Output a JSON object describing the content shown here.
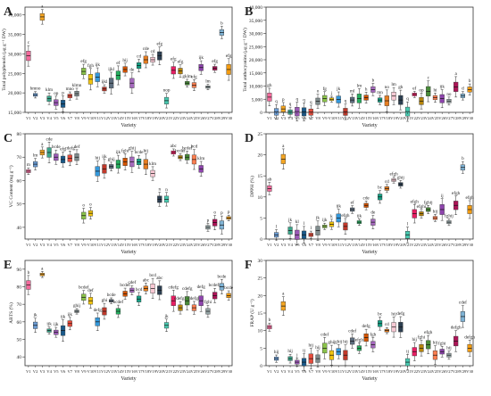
{
  "chart_data": [
    {
      "type": "box",
      "panel_label": "A",
      "xlabel": "",
      "ylabel": "Total polyphenols (μg g⁻¹ DW)",
      "ylim": [
        15000,
        42000
      ],
      "yticks": [
        15000,
        20000,
        25000,
        30000,
        35000,
        40000
      ],
      "ytick_labels": [
        "15,000",
        "20,000",
        "25,000",
        "30,000",
        "35,000",
        "40,000"
      ],
      "categories": [
        "V1",
        "V2",
        "V3",
        "V4",
        "V5",
        "V6",
        "V7",
        "V8",
        "V9",
        "V10",
        "V11",
        "V12",
        "V13",
        "V14",
        "V15",
        "V16",
        "V17",
        "V18",
        "V19",
        "V20",
        "V21",
        "V22",
        "V23",
        "V24",
        "V25",
        "V26",
        "V27",
        "V28",
        "V29",
        "V30"
      ],
      "medians": [
        29500,
        19500,
        39500,
        18500,
        17500,
        17200,
        19200,
        19800,
        25500,
        23500,
        24000,
        21000,
        22500,
        24500,
        26000,
        22500,
        27000,
        28500,
        28500,
        29500,
        18000,
        25800,
        25600,
        22500,
        22000,
        26500,
        21500,
        26300,
        35500,
        26000
      ],
      "letters": [
        "c",
        "hmno",
        "a",
        "klm",
        "op",
        "p",
        "mno",
        "klmn",
        "efg",
        "fgh",
        "ijk",
        "ijkl",
        "ijkl",
        "ef",
        "hij",
        "de",
        "cd",
        "cde",
        "cd",
        "efg",
        "nop",
        "efg",
        "efg",
        "gklm",
        "efg",
        "ijk",
        "lm",
        "efg",
        "b",
        "efg"
      ]
    },
    {
      "type": "box",
      "panel_label": "B",
      "xlabel": "",
      "ylabel": "Total anthocyanins (μg g⁻¹ DW)",
      "ylim": [
        0,
        40000
      ],
      "yticks": [
        0,
        5000,
        10000,
        15000,
        20000,
        25000,
        30000,
        35000,
        40000
      ],
      "ytick_labels": [
        "0",
        "5,000",
        "10,000",
        "15,000",
        "20,000",
        "25,000",
        "30,000",
        "35,000",
        "40,000"
      ],
      "categories": [
        "V1",
        "V2",
        "V3",
        "V4",
        "V5",
        "V6",
        "V7",
        "V8",
        "V9",
        "V10",
        "V11",
        "V12",
        "V13",
        "V14",
        "V15",
        "V16",
        "V17",
        "V18",
        "V19",
        "V20",
        "V21",
        "V22",
        "V23",
        "V24",
        "V25",
        "V26",
        "V27",
        "V28",
        "V29",
        "V30"
      ],
      "medians": [
        5800,
        200,
        1300,
        100,
        300,
        200,
        100,
        4200,
        5200,
        5000,
        4900,
        200,
        4700,
        5300,
        5600,
        8700,
        4700,
        4400,
        6200,
        4700,
        300,
        6800,
        4300,
        8000,
        5600,
        5200,
        4300,
        9700,
        6300,
        8700
      ],
      "letters": [
        "gh",
        "q",
        "p",
        "q",
        "q",
        "q",
        "q",
        "o",
        "fg",
        "j",
        "jk",
        "q",
        "ml",
        "lm",
        "h",
        "b",
        "mn",
        "no",
        "lm",
        "gh",
        "q",
        "ef",
        "op",
        "c",
        "hi",
        "ijk",
        "no",
        "a",
        "d",
        "b"
      ]
    },
    {
      "type": "box",
      "panel_label": "C",
      "xlabel": "",
      "ylabel": "VC Content (mg g⁻¹)",
      "ylim": [
        35,
        80
      ],
      "yticks": [
        40,
        50,
        60,
        70,
        80
      ],
      "ytick_labels": [
        "40",
        "50",
        "60",
        "70",
        "80"
      ],
      "categories": [
        "V1",
        "V2",
        "V3",
        "V4",
        "V5",
        "V6",
        "V7",
        "V8",
        "V9",
        "V10",
        "V11",
        "V12",
        "V13",
        "V14",
        "V15",
        "V16",
        "V17",
        "V18",
        "V19",
        "V20",
        "V21",
        "V22",
        "V23",
        "V24",
        "V25",
        "V26",
        "V27",
        "V28",
        "V29",
        "V30"
      ],
      "medians": [
        64,
        67,
        72,
        72,
        70,
        69,
        69.5,
        70,
        45,
        46,
        64,
        65,
        66,
        67,
        68,
        68,
        68,
        67,
        63,
        52,
        52,
        72,
        70,
        70,
        69,
        65,
        40,
        42,
        41,
        44
      ],
      "letters": [
        "m",
        "lm",
        "a",
        "cde",
        "bcde",
        "efg",
        "cdefg",
        "def",
        "o",
        "o",
        "hij",
        "ijk",
        "ghij",
        "ijk",
        "fghi",
        "ghij",
        "bcde",
        "hij",
        "klm",
        "n",
        "n",
        "abc",
        "bcdef",
        "bcdef",
        "bcd",
        "klm",
        "p",
        "o",
        "p",
        "p"
      ]
    },
    {
      "type": "box",
      "panel_label": "D",
      "xlabel": "",
      "ylabel": "DPPH (%)",
      "ylim": [
        0,
        25
      ],
      "yticks": [
        0,
        5,
        10,
        15,
        20,
        25
      ],
      "ytick_labels": [
        "0",
        "5",
        "10",
        "15",
        "20",
        "25"
      ],
      "categories": [
        "V1",
        "V2",
        "V3",
        "V4",
        "V5",
        "V6",
        "V7",
        "V8",
        "V9",
        "V10",
        "V11",
        "V12",
        "V13",
        "V14",
        "V15",
        "V16",
        "V17",
        "V18",
        "V19",
        "V20",
        "V21",
        "V22",
        "V23",
        "V24",
        "V25",
        "V26",
        "V27",
        "V28",
        "V29",
        "V30"
      ],
      "medians": [
        12,
        1,
        19,
        2,
        1,
        1,
        1,
        2,
        3,
        3.5,
        5,
        3,
        7,
        4,
        8,
        4,
        10,
        12,
        14,
        13,
        1,
        6,
        6,
        7,
        5,
        7,
        4,
        8,
        17,
        7
      ],
      "letters": [
        "ab",
        "l",
        "a",
        "jk",
        "kl",
        "l",
        "l",
        "jk",
        "ijk",
        "k",
        "ijk",
        "efgh",
        "ef",
        "ijk",
        "cde",
        "de",
        "bc",
        "cd",
        "efgh",
        "ghij",
        "l",
        "efgh",
        "efghi",
        "fghij",
        "hij",
        "ij",
        "fghij",
        "efgh",
        "b",
        "efgh"
      ]
    },
    {
      "type": "box",
      "panel_label": "E",
      "xlabel": "",
      "ylabel": "ABTS (%)",
      "ylim": [
        35,
        95
      ],
      "yticks": [
        40,
        50,
        60,
        70,
        80,
        90
      ],
      "ytick_labels": [
        "40",
        "50",
        "60",
        "70",
        "80",
        "90"
      ],
      "categories": [
        "V1",
        "V2",
        "V3",
        "V4",
        "V5",
        "V6",
        "V7",
        "V8",
        "V9",
        "V10",
        "V11",
        "V12",
        "V13",
        "V14",
        "V15",
        "V16",
        "V17",
        "V18",
        "V19",
        "V20",
        "V21",
        "V22",
        "V23",
        "V24",
        "V25",
        "V26",
        "V27",
        "V28",
        "V29",
        "V30"
      ],
      "medians": [
        81,
        58,
        87,
        55,
        54,
        55,
        59,
        66,
        74,
        72,
        60,
        66,
        72,
        66,
        76,
        78,
        73,
        79,
        79,
        78,
        58,
        72,
        68,
        72,
        68,
        72,
        66,
        75,
        80,
        75
      ],
      "letters": [
        "b",
        "jk",
        "a",
        "ijk",
        "ijk",
        "ijk",
        "ijk",
        "ghij",
        "bcdef",
        "def",
        "defg",
        "ghi",
        "bcde",
        "bcdef",
        "bcdef",
        "cdef",
        "bcd",
        "abc",
        "bcd",
        "abc",
        "jk",
        "cdefg",
        "cdefgh",
        "cdefg",
        "cdefgh",
        "defg",
        "fghi",
        "bcdefg",
        "bcde",
        "bcde"
      ]
    },
    {
      "type": "box",
      "panel_label": "F",
      "xlabel": "",
      "ylabel": "FRAP (U g⁻¹)",
      "ylim": [
        0,
        30
      ],
      "yticks": [
        0,
        5,
        10,
        15,
        20,
        25,
        30
      ],
      "ytick_labels": [
        "0",
        "5",
        "10",
        "15",
        "20",
        "25",
        "30"
      ],
      "categories": [
        "V1",
        "V2",
        "V3",
        "V4",
        "V5",
        "V6",
        "V7",
        "V8",
        "V9",
        "V10",
        "V11",
        "V12",
        "V13",
        "V14",
        "V15",
        "V16",
        "V17",
        "V18",
        "V19",
        "V20",
        "V21",
        "V22",
        "V23",
        "V24",
        "V25",
        "V26",
        "V27",
        "V28",
        "V29",
        "V30"
      ],
      "medians": [
        11,
        2,
        17,
        2,
        1,
        1,
        2,
        2,
        5,
        3,
        4,
        3,
        7,
        5,
        8,
        6,
        12,
        10,
        11,
        11,
        1,
        4,
        5,
        6,
        3,
        4,
        3,
        7,
        14,
        5
      ],
      "letters": [
        "b",
        "hij",
        "a",
        "hij",
        "j",
        "ij",
        "hij",
        "hij",
        "cdef",
        "ghij",
        "ghij",
        "hij",
        "cdef",
        "efgh",
        "defg",
        "fgh",
        "bc",
        "cd",
        "hij",
        "defg",
        "ij",
        "hij",
        "fghi",
        "efgh",
        "hij",
        "fghi",
        "hij",
        "defgh",
        "cdef",
        "defgh"
      ]
    }
  ],
  "axis_common": {
    "xlabel": "Variety"
  },
  "palette": [
    "#f36b9c",
    "#6b9cd3",
    "#f5a623",
    "#3aa58a",
    "#9b59b6",
    "#1a5a8a",
    "#e74c3c",
    "#7f8c8d",
    "#8bc34a",
    "#f1c40f",
    "#3498db",
    "#c0392b",
    "#5d6d7e",
    "#27ae60",
    "#d35400",
    "#a569bd",
    "#16a085",
    "#e67e22",
    "#f8c9d4",
    "#2c3e50",
    "#48c9b0",
    "#e91e63",
    "#b8860b",
    "#4a8c3a",
    "#ff7f50",
    "#8e44ad",
    "#95a5a6",
    "#ad1457",
    "#7fb3d5",
    "#f39c12"
  ]
}
